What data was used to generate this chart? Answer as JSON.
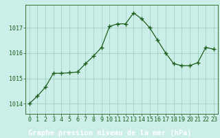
{
  "x": [
    0,
    1,
    2,
    3,
    4,
    5,
    6,
    7,
    8,
    9,
    10,
    11,
    12,
    13,
    14,
    15,
    16,
    17,
    18,
    19,
    20,
    21,
    22,
    23
  ],
  "y": [
    1014.0,
    1014.3,
    1014.65,
    1015.2,
    1015.2,
    1015.22,
    1015.25,
    1015.58,
    1015.88,
    1016.22,
    1017.05,
    1017.15,
    1017.15,
    1017.58,
    1017.35,
    1017.0,
    1016.5,
    1016.0,
    1015.58,
    1015.5,
    1015.5,
    1015.62,
    1016.22,
    1016.15
  ],
  "line_color": "#1a5e1a",
  "marker": "+",
  "marker_size": 4,
  "marker_edge_width": 1.0,
  "line_width": 0.9,
  "bg_color": "#cceee8",
  "grid_color": "#99ccbb",
  "axis_color": "#1a5e1a",
  "label_bar_color": "#336633",
  "xlabel": "Graphe pression niveau de la mer (hPa)",
  "xlabel_fontsize": 7.5,
  "tick_fontsize": 6.0,
  "ylim": [
    1013.6,
    1017.9
  ],
  "yticks": [
    1014,
    1015,
    1016,
    1017
  ],
  "xticks": [
    0,
    1,
    2,
    3,
    4,
    5,
    6,
    7,
    8,
    9,
    10,
    11,
    12,
    13,
    14,
    15,
    16,
    17,
    18,
    19,
    20,
    21,
    22,
    23
  ]
}
